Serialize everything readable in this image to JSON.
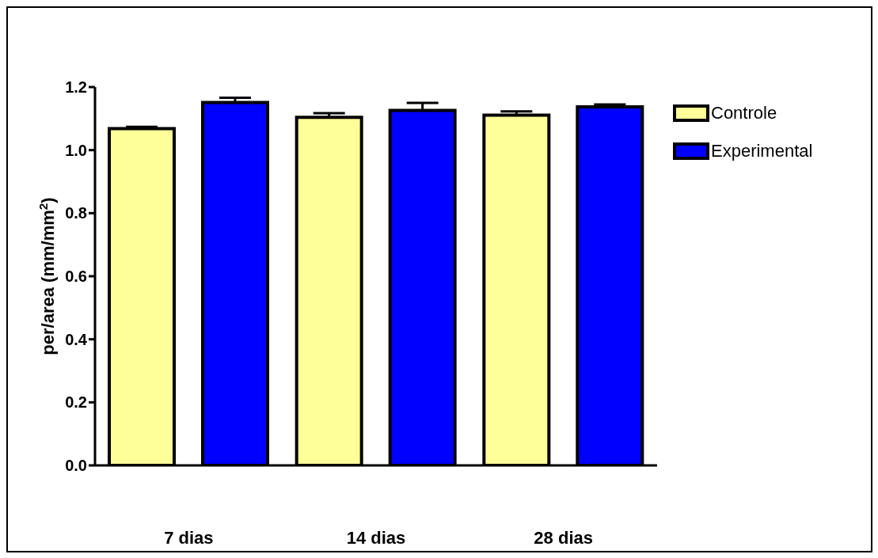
{
  "chart_data": {
    "type": "bar",
    "ylabel": "per/area (mm/mm$^{2}$)",
    "categories": [
      "7 dias",
      "14 dias",
      "28 dias"
    ],
    "series": [
      {
        "name": "Controle",
        "color": "#ffff99",
        "values": [
          1.068,
          1.104,
          1.111
        ],
        "errors": [
          [
            1.068,
            1.074
          ],
          [
            1.104,
            1.117
          ],
          [
            1.111,
            1.123
          ]
        ]
      },
      {
        "name": "Experimental",
        "color": "#0000ff",
        "values": [
          1.151,
          1.126,
          1.137
        ],
        "errors": [
          [
            1.151,
            1.166
          ],
          [
            1.126,
            1.15
          ],
          [
            1.137,
            1.145
          ]
        ]
      }
    ],
    "ylim": [
      0,
      1.2
    ],
    "yticks": [
      {
        "value": 0,
        "label": "0.0"
      },
      {
        "value": 0.2,
        "label": "0.2"
      },
      {
        "value": 0.4,
        "label": "0.4"
      },
      {
        "value": 0.6,
        "label": "0.6"
      },
      {
        "value": 0.8,
        "label": "0.8"
      },
      {
        "value": 1.0,
        "label": "1.0"
      },
      {
        "value": 1.2,
        "label": "1.2"
      }
    ],
    "grid": false,
    "legend": "top right"
  }
}
